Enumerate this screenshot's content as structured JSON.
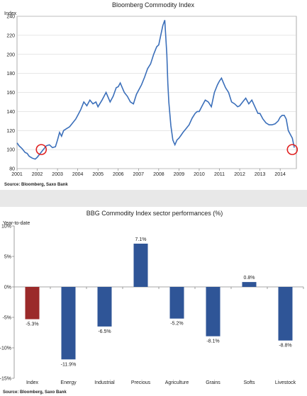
{
  "chart_data": [
    {
      "type": "line",
      "title": "Bloomberg Commodity Index",
      "ylabel": "Index",
      "source": "Source: Bloomberg, Saxo Bank",
      "ylim": [
        80,
        240
      ],
      "yticks": [
        "80",
        "100",
        "120",
        "140",
        "160",
        "180",
        "200",
        "220",
        "240"
      ],
      "xlim": [
        2001,
        2014.8
      ],
      "xticks": [
        "2001",
        "2002",
        "2003",
        "2004",
        "2005",
        "2006",
        "2007",
        "2008",
        "2009",
        "2010",
        "2011",
        "2012",
        "2013",
        "2014"
      ],
      "grid": true,
      "colors": {
        "line": "#3b6fba",
        "highlight": "#e02020"
      },
      "highlights": [
        {
          "x": 2002.2,
          "y": 100
        },
        {
          "x": 2014.6,
          "y": 100
        }
      ],
      "series": [
        {
          "x": [
            2001.0,
            2001.1,
            2001.25,
            2001.4,
            2001.5,
            2001.6,
            2001.75,
            2001.9,
            2002.0,
            2002.15,
            2002.3,
            2002.45,
            2002.6,
            2002.75,
            2002.9,
            2003.0,
            2003.1,
            2003.2,
            2003.3,
            2003.45,
            2003.6,
            2003.75,
            2003.9,
            2004.0,
            2004.15,
            2004.3,
            2004.45,
            2004.6,
            2004.75,
            2004.9,
            2005.0,
            2005.2,
            2005.4,
            2005.6,
            2005.75,
            2005.9,
            2006.0,
            2006.1,
            2006.3,
            2006.45,
            2006.6,
            2006.75,
            2006.9,
            2007.0,
            2007.15,
            2007.3,
            2007.45,
            2007.6,
            2007.75,
            2007.9,
            2008.0,
            2008.1,
            2008.2,
            2008.3,
            2008.4,
            2008.45,
            2008.5,
            2008.6,
            2008.7,
            2008.8,
            2008.9,
            2009.0,
            2009.1,
            2009.2,
            2009.35,
            2009.5,
            2009.65,
            2009.8,
            2009.9,
            2010.0,
            2010.15,
            2010.3,
            2010.45,
            2010.6,
            2010.75,
            2010.9,
            2011.0,
            2011.1,
            2011.2,
            2011.3,
            2011.45,
            2011.6,
            2011.75,
            2011.9,
            2012.0,
            2012.15,
            2012.3,
            2012.45,
            2012.6,
            2012.75,
            2012.9,
            2013.0,
            2013.15,
            2013.3,
            2013.45,
            2013.6,
            2013.75,
            2013.9,
            2014.0,
            2014.1,
            2014.2,
            2014.3,
            2014.4,
            2014.5,
            2014.6,
            2014.7
          ],
          "values": [
            107,
            104,
            101,
            97,
            96,
            93,
            91,
            90,
            92,
            96,
            100,
            104,
            105,
            102,
            103,
            110,
            118,
            114,
            120,
            122,
            124,
            128,
            132,
            136,
            142,
            150,
            146,
            152,
            148,
            150,
            145,
            152,
            160,
            150,
            156,
            165,
            166,
            170,
            160,
            156,
            150,
            148,
            158,
            162,
            168,
            176,
            185,
            190,
            200,
            208,
            210,
            220,
            230,
            236,
            200,
            170,
            150,
            125,
            110,
            105,
            110,
            112,
            115,
            118,
            122,
            126,
            133,
            138,
            140,
            140,
            146,
            152,
            150,
            145,
            160,
            168,
            172,
            175,
            170,
            165,
            160,
            150,
            148,
            145,
            146,
            150,
            154,
            148,
            152,
            145,
            138,
            138,
            132,
            128,
            126,
            126,
            127,
            130,
            134,
            136,
            136,
            132,
            120,
            116,
            112,
            102
          ]
        }
      ]
    },
    {
      "type": "bar",
      "title": "BBG Commodity Index sector performances (%)",
      "ylabel": "Year-to-date",
      "source": "Source: Bloomberg, Saxo Bank",
      "ylim": [
        -15,
        10
      ],
      "yticks": [
        "10%",
        "5%",
        "0%",
        "-5%",
        "-10%",
        "-15%"
      ],
      "categories": [
        "Index",
        "Energy",
        "Industrial",
        "Precious",
        "Agriculture",
        "Grains",
        "Softs",
        "Livestock"
      ],
      "values": [
        -5.3,
        -11.9,
        -6.5,
        7.1,
        -5.2,
        -8.1,
        0.8,
        -8.8
      ],
      "value_labels": [
        "-5.3%",
        "-11.9%",
        "-6.5%",
        "7.1%",
        "-5.2%",
        "-8.1%",
        "0.8%",
        "-8.8%"
      ],
      "grid": false,
      "colors": {
        "highlight": "#9b2a2a",
        "default": "#2f5597"
      }
    }
  ]
}
